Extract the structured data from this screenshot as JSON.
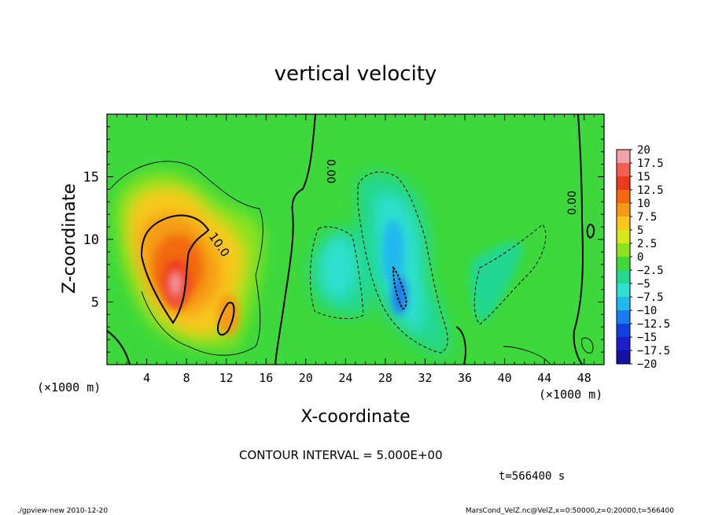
{
  "chart_data": {
    "type": "heatmap",
    "title": "vertical velocity",
    "xlabel": "X-coordinate",
    "ylabel": "Z-coordinate",
    "x_unit_label": "(×1000 m)",
    "xlim": [
      0,
      50
    ],
    "ylim": [
      0,
      20
    ],
    "x_ticks": [
      4,
      8,
      12,
      16,
      20,
      24,
      28,
      32,
      36,
      40,
      44,
      48
    ],
    "y_ticks": [
      5,
      10,
      15
    ],
    "colorbar": {
      "levels": [
        20,
        17.5,
        15,
        12.5,
        10,
        7.5,
        5,
        2.5,
        0,
        -2.5,
        -5,
        -7.5,
        -10,
        -12.5,
        -15,
        -17.5,
        -20
      ],
      "labels": [
        "20",
        "17.5",
        "15",
        "12.5",
        "10",
        "7.5",
        "5",
        "2.5",
        "0",
        "−2.5",
        "−5",
        "−7.5",
        "−10",
        "−12.5",
        "−15",
        "−17.5",
        "−20"
      ],
      "colors": [
        "#f4a0a8",
        "#ef6050",
        "#ee3a1c",
        "#f26a0d",
        "#f59a12",
        "#f8c81a",
        "#d4e81a",
        "#8ce21e",
        "#3cd83c",
        "#24d890",
        "#2ee0d0",
        "#22b8ee",
        "#1a7cf0",
        "#1040e0",
        "#1a1ec8",
        "#1610a0",
        "#7020b8"
      ]
    },
    "contour_labels": [
      "10.0",
      "0.00",
      "0.00"
    ],
    "contour_interval_text": "CONTOUR INTERVAL = 5.000E+00",
    "time_text": "t=566400 s",
    "features": [
      {
        "kind": "updraft_max",
        "x": 7,
        "z": 6.5,
        "value": 19
      },
      {
        "kind": "updraft",
        "x": 10,
        "z": 9,
        "value": 12
      },
      {
        "kind": "downdraft_min",
        "x": 29,
        "z": 6.5,
        "value": -11
      },
      {
        "kind": "downdraft",
        "x": 23,
        "z": 8,
        "value": -5
      }
    ]
  },
  "footer": {
    "left": "./gpview-new  2010-12-20",
    "right": "MarsCond_VelZ.nc@VelZ,x=0:50000,z=0:20000,t=566400"
  }
}
